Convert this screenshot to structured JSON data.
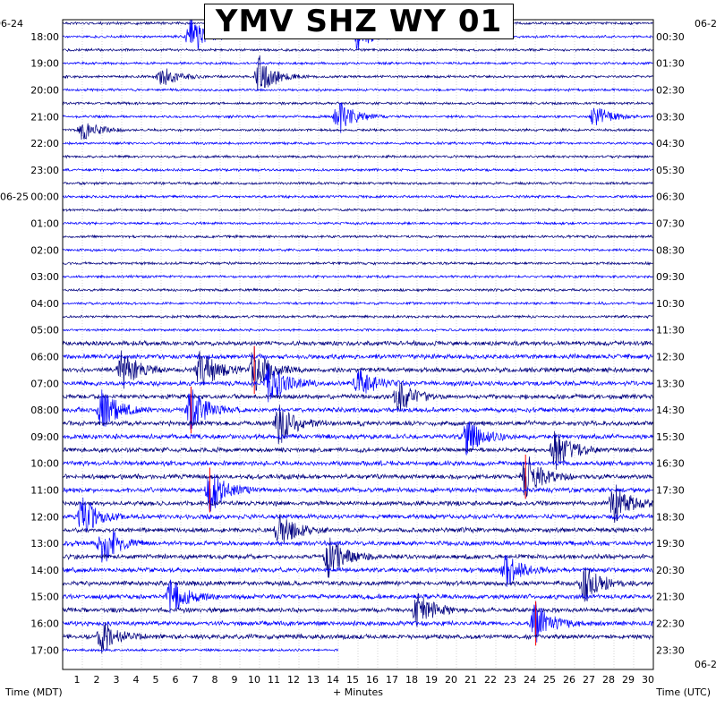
{
  "chart_data": {
    "type": "line",
    "title": "YMV SHZ WY 01",
    "xlabel": "+ Minutes",
    "left_axis_label": "Time (MDT)",
    "right_axis_label": "Time (UTC)",
    "x_ticks": [
      "1",
      "2",
      "3",
      "4",
      "5",
      "6",
      "7",
      "8",
      "9",
      "10",
      "11",
      "12",
      "13",
      "14",
      "15",
      "16",
      "17",
      "18",
      "19",
      "20",
      "21",
      "22",
      "23",
      "24",
      "25",
      "26",
      "27",
      "28",
      "29",
      "30"
    ],
    "xlim": [
      0,
      30
    ],
    "rows_per_hour": 2,
    "row_count": 48,
    "left_date_labels": [
      {
        "text": "06-24",
        "at_time": "17:00"
      },
      {
        "text": "06-25",
        "at_time": "00:00"
      }
    ],
    "right_date_labels": [
      {
        "text": "06-2",
        "at_end": "top"
      },
      {
        "text": "06-2",
        "at_end": "bottom"
      }
    ],
    "left_times": [
      "18:00",
      "19:00",
      "20:00",
      "21:00",
      "22:00",
      "23:00",
      "00:00",
      "01:00",
      "02:00",
      "03:00",
      "04:00",
      "05:00",
      "06:00",
      "07:00",
      "08:00",
      "09:00",
      "10:00",
      "11:00",
      "12:00",
      "13:00",
      "14:00",
      "15:00",
      "16:00",
      "17:00"
    ],
    "right_times": [
      "00:30",
      "01:30",
      "02:30",
      "03:30",
      "04:30",
      "05:30",
      "06:30",
      "07:30",
      "08:30",
      "09:30",
      "10:30",
      "11:30",
      "12:30",
      "13:30",
      "14:30",
      "15:30",
      "16:30",
      "17:30",
      "18:30",
      "19:30",
      "20:30",
      "21:30",
      "22:30",
      "23:30"
    ],
    "series_colors": [
      "#000080",
      "#0000ff"
    ],
    "clip_color": "#ff0000",
    "last_row_end_minute": 14,
    "events": [
      {
        "row": 1,
        "minute": 6.5,
        "amp": 0.8
      },
      {
        "row": 1,
        "minute": 15,
        "amp": 0.6
      },
      {
        "row": 4,
        "minute": 10,
        "amp": 0.9
      },
      {
        "row": 4,
        "minute": 5,
        "amp": 0.5
      },
      {
        "row": 7,
        "minute": 14,
        "amp": 0.8
      },
      {
        "row": 7,
        "minute": 27,
        "amp": 0.5
      },
      {
        "row": 8,
        "minute": 1,
        "amp": 0.5
      },
      {
        "row": 26,
        "minute": 3,
        "amp": 0.9
      },
      {
        "row": 26,
        "minute": 7,
        "amp": 1.0
      },
      {
        "row": 26,
        "minute": 9.7,
        "amp": 1.0
      },
      {
        "row": 27,
        "minute": 10.5,
        "amp": 1.0
      },
      {
        "row": 27,
        "minute": 15,
        "amp": 0.7
      },
      {
        "row": 28,
        "minute": 17,
        "amp": 0.8
      },
      {
        "row": 29,
        "minute": 2,
        "amp": 0.9
      },
      {
        "row": 29,
        "minute": 6.5,
        "amp": 1.0
      },
      {
        "row": 30,
        "minute": 11,
        "amp": 0.9
      },
      {
        "row": 31,
        "minute": 20.5,
        "amp": 0.8
      },
      {
        "row": 32,
        "minute": 25,
        "amp": 0.9
      },
      {
        "row": 34,
        "minute": 23.5,
        "amp": 1.0
      },
      {
        "row": 35,
        "minute": 7.5,
        "amp": 1.0
      },
      {
        "row": 36,
        "minute": 28,
        "amp": 1.0
      },
      {
        "row": 37,
        "minute": 1,
        "amp": 0.9
      },
      {
        "row": 38,
        "minute": 11,
        "amp": 0.8
      },
      {
        "row": 39,
        "minute": 2,
        "amp": 1.0
      },
      {
        "row": 40,
        "minute": 13.5,
        "amp": 0.9
      },
      {
        "row": 41,
        "minute": 22.5,
        "amp": 0.8
      },
      {
        "row": 42,
        "minute": 26.5,
        "amp": 0.9
      },
      {
        "row": 43,
        "minute": 5.5,
        "amp": 0.8
      },
      {
        "row": 44,
        "minute": 18,
        "amp": 0.8
      },
      {
        "row": 45,
        "minute": 24,
        "amp": 0.9
      },
      {
        "row": 46,
        "minute": 2,
        "amp": 0.7
      }
    ]
  }
}
